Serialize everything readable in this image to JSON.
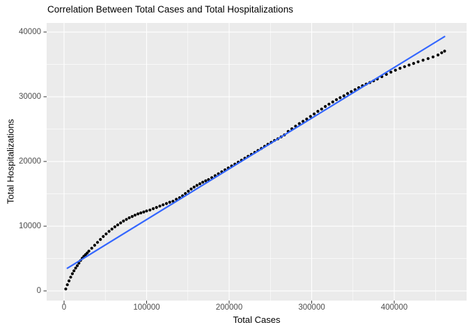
{
  "chart_data": {
    "type": "scatter",
    "title": "Correlation Between Total Cases and Total Hospitalizations",
    "xlabel": "Total Cases",
    "ylabel": "Total Hospitalizations",
    "x_major_ticks": [
      0,
      100000,
      200000,
      300000,
      400000
    ],
    "x_tick_labels": [
      "0",
      "100000",
      "200000",
      "300000",
      "400000"
    ],
    "x_minor_ticks": [
      50000,
      150000,
      250000,
      350000,
      450000
    ],
    "y_major_ticks": [
      0,
      10000,
      20000,
      30000,
      40000
    ],
    "y_tick_labels": [
      "0",
      "10000",
      "20000",
      "30000",
      "40000"
    ],
    "y_minor_ticks": [
      5000,
      15000,
      25000,
      35000
    ],
    "xlim": [
      -21100,
      487700
    ],
    "ylim": [
      -1500,
      41400
    ],
    "grid": "major-and-minor-white-on-grey",
    "legend": "none",
    "colors": {
      "panel_background": "#EBEBEB",
      "gridline": "#FFFFFF",
      "points": "#000000",
      "smooth_line": "#3366FF",
      "tick_text": "#4D4D4D",
      "tick_mark": "#333333"
    },
    "series": [
      {
        "name": "total-cases-vs-hospitalizations",
        "type": "scatter",
        "color": "#000000",
        "points": [
          [
            2000,
            300
          ],
          [
            4000,
            950
          ],
          [
            6000,
            1550
          ],
          [
            8000,
            2120
          ],
          [
            10000,
            2650
          ],
          [
            12000,
            3100
          ],
          [
            14000,
            3520
          ],
          [
            16000,
            3900
          ],
          [
            18000,
            4280
          ],
          [
            20000,
            4700
          ],
          [
            22000,
            5050
          ],
          [
            24000,
            5350
          ],
          [
            26000,
            5600
          ],
          [
            28000,
            5850
          ],
          [
            30000,
            6150
          ],
          [
            33500,
            6600
          ],
          [
            37000,
            7050
          ],
          [
            40500,
            7500
          ],
          [
            44000,
            7950
          ],
          [
            47500,
            8400
          ],
          [
            51000,
            8800
          ],
          [
            54500,
            9200
          ],
          [
            58000,
            9550
          ],
          [
            61500,
            9900
          ],
          [
            65000,
            10200
          ],
          [
            68500,
            10500
          ],
          [
            72000,
            10800
          ],
          [
            75500,
            11050
          ],
          [
            79000,
            11300
          ],
          [
            82500,
            11500
          ],
          [
            86000,
            11700
          ],
          [
            89500,
            11900
          ],
          [
            93000,
            12050
          ],
          [
            96500,
            12200
          ],
          [
            100000,
            12350
          ],
          [
            104000,
            12500
          ],
          [
            108000,
            12700
          ],
          [
            112000,
            12900
          ],
          [
            116000,
            13100
          ],
          [
            120000,
            13300
          ],
          [
            124000,
            13500
          ],
          [
            128000,
            13700
          ],
          [
            132000,
            13850
          ],
          [
            136000,
            14150
          ],
          [
            140000,
            14400
          ],
          [
            143500,
            14700
          ],
          [
            147000,
            15050
          ],
          [
            150500,
            15400
          ],
          [
            154000,
            15750
          ],
          [
            157500,
            16050
          ],
          [
            161000,
            16300
          ],
          [
            164500,
            16550
          ],
          [
            168000,
            16800
          ],
          [
            171500,
            17000
          ],
          [
            175000,
            17200
          ],
          [
            179000,
            17500
          ],
          [
            183000,
            17800
          ],
          [
            187000,
            18100
          ],
          [
            191000,
            18400
          ],
          [
            195000,
            18700
          ],
          [
            199000,
            19000
          ],
          [
            203000,
            19300
          ],
          [
            207000,
            19600
          ],
          [
            211000,
            19900
          ],
          [
            215000,
            20200
          ],
          [
            219000,
            20500
          ],
          [
            223000,
            20800
          ],
          [
            227000,
            21100
          ],
          [
            231000,
            21400
          ],
          [
            235000,
            21700
          ],
          [
            239000,
            22000
          ],
          [
            243000,
            22350
          ],
          [
            247000,
            22650
          ],
          [
            251000,
            22950
          ],
          [
            255000,
            23250
          ],
          [
            259000,
            23500
          ],
          [
            263000,
            23800
          ],
          [
            267000,
            24100
          ],
          [
            271500,
            24650
          ],
          [
            276000,
            25050
          ],
          [
            280500,
            25450
          ],
          [
            285000,
            25850
          ],
          [
            289500,
            26200
          ],
          [
            294000,
            26550
          ],
          [
            298500,
            26950
          ],
          [
            303000,
            27350
          ],
          [
            307500,
            27750
          ],
          [
            312000,
            28100
          ],
          [
            316500,
            28500
          ],
          [
            321000,
            28850
          ],
          [
            325500,
            29200
          ],
          [
            330000,
            29550
          ],
          [
            334500,
            29850
          ],
          [
            339000,
            30150
          ],
          [
            343500,
            30500
          ],
          [
            348000,
            30800
          ],
          [
            352500,
            31100
          ],
          [
            357000,
            31400
          ],
          [
            361500,
            31700
          ],
          [
            366000,
            31950
          ],
          [
            370500,
            32200
          ],
          [
            375000,
            32450
          ],
          [
            379500,
            32750
          ],
          [
            385000,
            33100
          ],
          [
            390500,
            33450
          ],
          [
            396000,
            33800
          ],
          [
            401500,
            34100
          ],
          [
            407000,
            34400
          ],
          [
            412500,
            34650
          ],
          [
            418000,
            34900
          ],
          [
            423500,
            35150
          ],
          [
            429000,
            35400
          ],
          [
            435000,
            35650
          ],
          [
            441000,
            35900
          ],
          [
            447000,
            36150
          ],
          [
            453000,
            36450
          ],
          [
            457500,
            36800
          ],
          [
            461000,
            37050
          ]
        ]
      },
      {
        "name": "linear-fit",
        "type": "line",
        "color": "#3366FF",
        "points": [
          [
            4000,
            3500
          ],
          [
            461000,
            39300
          ]
        ]
      }
    ]
  }
}
